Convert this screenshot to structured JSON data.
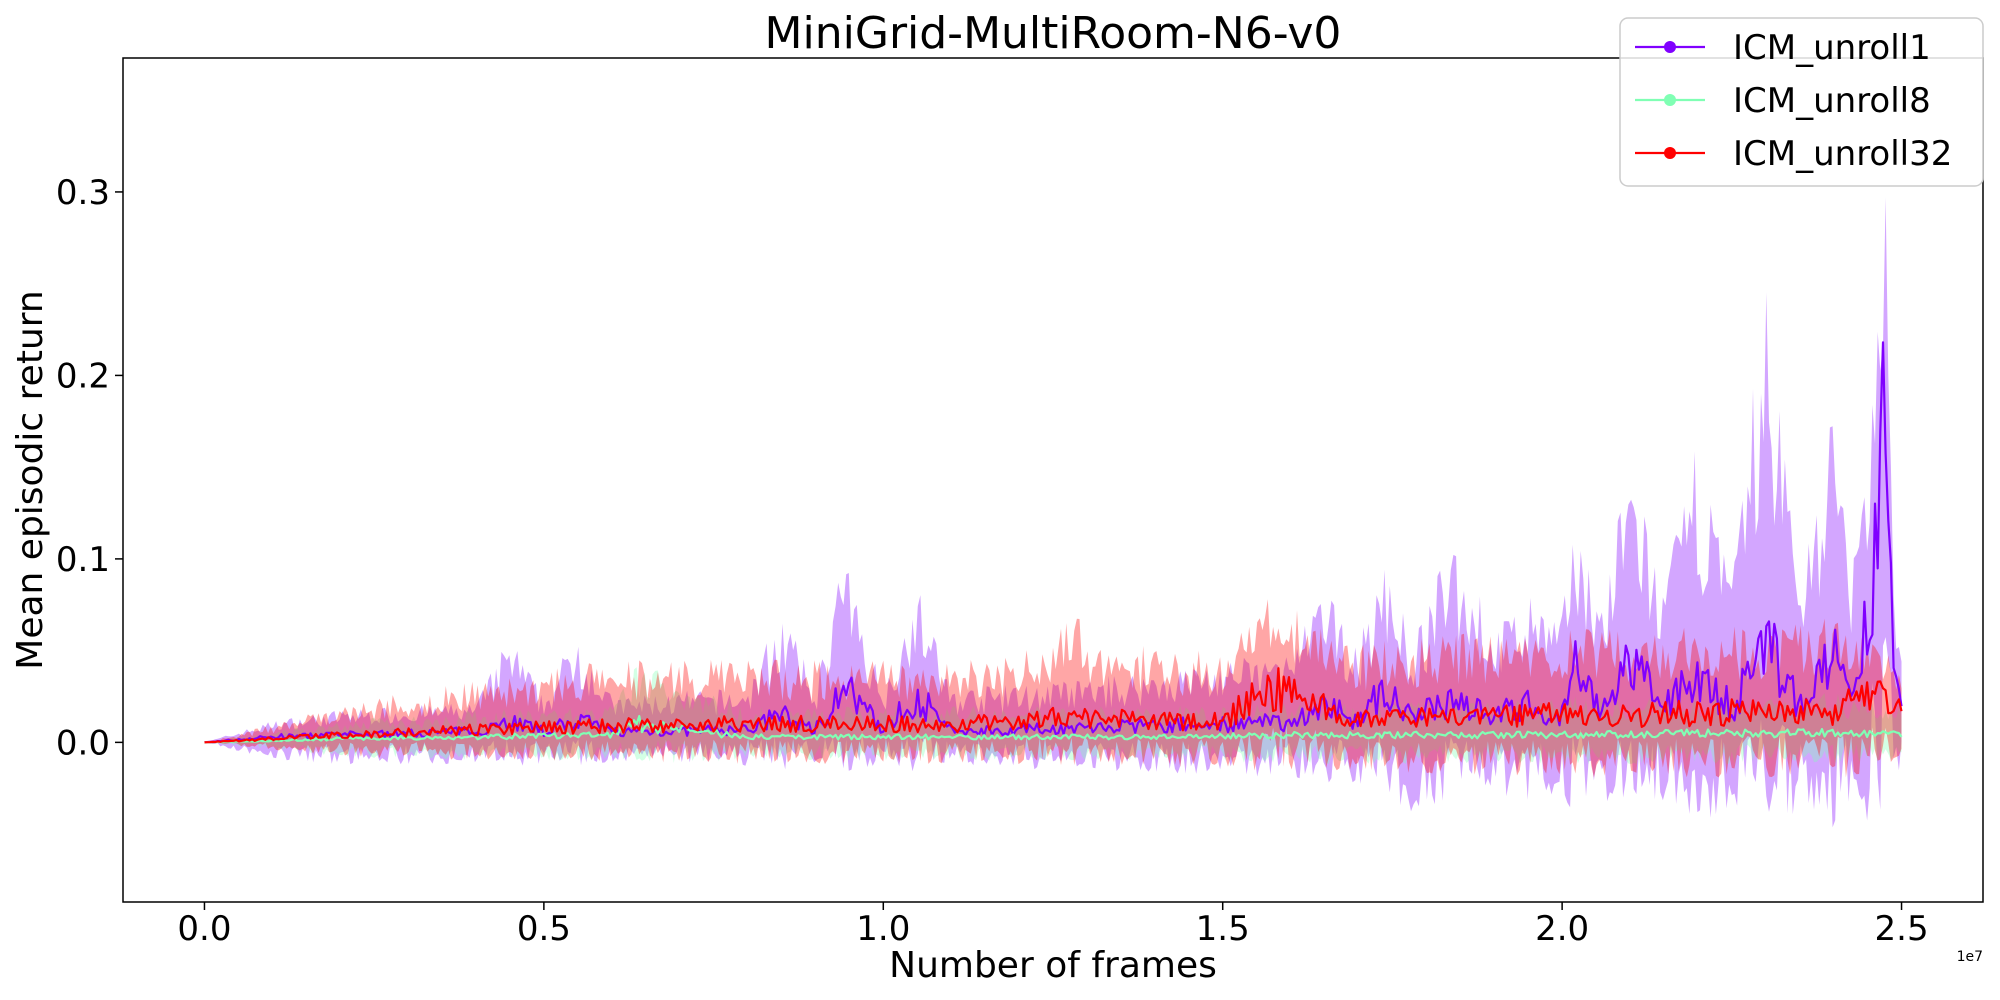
{
  "chart_data": {
    "type": "line",
    "title": "MiniGrid-MultiRoom-N6-v0",
    "xlabel": "Number of frames",
    "ylabel": "Mean episodic return",
    "x_offset_label": "1e7",
    "xlim": [
      -0.12,
      2.62
    ],
    "ylim": [
      -0.087,
      0.373
    ],
    "x_ticks": [
      0.0,
      0.5,
      1.0,
      1.5,
      2.0,
      2.5
    ],
    "x_tick_labels": [
      "0.0",
      "0.5",
      "1.0",
      "1.5",
      "2.0",
      "2.5"
    ],
    "y_ticks": [
      0.0,
      0.1,
      0.2,
      0.3
    ],
    "y_tick_labels": [
      "0.0",
      "0.1",
      "0.2",
      "0.3"
    ],
    "grid": false,
    "legend_position": "top-right",
    "series": [
      {
        "name": "ICM_unroll1",
        "color": "#8000ff",
        "x": [
          0.0,
          0.1,
          0.2,
          0.3,
          0.4,
          0.45,
          0.5,
          0.55,
          0.6,
          0.7,
          0.8,
          0.85,
          0.9,
          0.94,
          1.0,
          1.05,
          1.1,
          1.2,
          1.3,
          1.4,
          1.5,
          1.6,
          1.65,
          1.7,
          1.74,
          1.78,
          1.84,
          1.9,
          1.95,
          2.0,
          2.02,
          2.06,
          2.1,
          2.15,
          2.2,
          2.25,
          2.3,
          2.35,
          2.4,
          2.43,
          2.46,
          2.475,
          2.49,
          2.5
        ],
        "mean": [
          0.0,
          0.003,
          0.004,
          0.005,
          0.006,
          0.012,
          0.006,
          0.012,
          0.006,
          0.006,
          0.007,
          0.015,
          0.007,
          0.03,
          0.007,
          0.025,
          0.006,
          0.007,
          0.008,
          0.009,
          0.01,
          0.011,
          0.02,
          0.012,
          0.03,
          0.012,
          0.025,
          0.015,
          0.02,
          0.015,
          0.04,
          0.015,
          0.045,
          0.018,
          0.04,
          0.018,
          0.055,
          0.02,
          0.045,
          0.02,
          0.09,
          0.17,
          0.03,
          0.015
        ],
        "upper": [
          0.0,
          0.012,
          0.018,
          0.02,
          0.022,
          0.06,
          0.025,
          0.065,
          0.025,
          0.028,
          0.03,
          0.075,
          0.03,
          0.105,
          0.03,
          0.088,
          0.03,
          0.032,
          0.035,
          0.04,
          0.045,
          0.05,
          0.085,
          0.055,
          0.1,
          0.055,
          0.115,
          0.065,
          0.08,
          0.07,
          0.13,
          0.075,
          0.16,
          0.085,
          0.17,
          0.09,
          0.26,
          0.1,
          0.19,
          0.1,
          0.2,
          0.34,
          0.09,
          0.05
        ],
        "lower": [
          0.0,
          -0.01,
          -0.012,
          -0.012,
          -0.012,
          -0.015,
          -0.012,
          -0.015,
          -0.012,
          -0.012,
          -0.013,
          -0.015,
          -0.013,
          -0.018,
          -0.013,
          -0.018,
          -0.013,
          -0.015,
          -0.016,
          -0.017,
          -0.018,
          -0.02,
          -0.025,
          -0.022,
          -0.03,
          -0.04,
          -0.03,
          -0.028,
          -0.035,
          -0.03,
          -0.04,
          -0.032,
          -0.04,
          -0.035,
          -0.045,
          -0.035,
          -0.045,
          -0.04,
          -0.05,
          -0.04,
          -0.055,
          -0.065,
          -0.03,
          -0.01
        ]
      },
      {
        "name": "ICM_unroll8",
        "color": "#80ffb4",
        "x": [
          0.0,
          0.2,
          0.4,
          0.6,
          0.64,
          0.8,
          1.0,
          1.2,
          1.4,
          1.6,
          1.8,
          2.0,
          2.2,
          2.4,
          2.5
        ],
        "mean": [
          0.0,
          0.002,
          0.003,
          0.004,
          0.01,
          0.003,
          0.003,
          0.003,
          0.003,
          0.004,
          0.004,
          0.004,
          0.005,
          0.005,
          0.004
        ],
        "upper": [
          0.0,
          0.012,
          0.018,
          0.02,
          0.045,
          0.02,
          0.02,
          0.02,
          0.02,
          0.022,
          0.022,
          0.025,
          0.025,
          0.028,
          0.02
        ],
        "lower": [
          0.0,
          -0.008,
          -0.01,
          -0.01,
          -0.012,
          -0.01,
          -0.01,
          -0.01,
          -0.01,
          -0.012,
          -0.012,
          -0.012,
          -0.012,
          -0.012,
          -0.01
        ]
      },
      {
        "name": "ICM_unroll32",
        "color": "#ff0000",
        "x": [
          0.0,
          0.2,
          0.4,
          0.5,
          0.6,
          0.8,
          1.0,
          1.1,
          1.2,
          1.26,
          1.4,
          1.5,
          1.57,
          1.7,
          1.8,
          1.9,
          2.0,
          2.1,
          2.2,
          2.3,
          2.4,
          2.46,
          2.5
        ],
        "mean": [
          0.0,
          0.004,
          0.007,
          0.008,
          0.009,
          0.01,
          0.01,
          0.01,
          0.011,
          0.015,
          0.011,
          0.012,
          0.03,
          0.012,
          0.013,
          0.014,
          0.015,
          0.015,
          0.016,
          0.017,
          0.017,
          0.025,
          0.018
        ],
        "upper": [
          0.0,
          0.02,
          0.035,
          0.04,
          0.045,
          0.045,
          0.045,
          0.045,
          0.048,
          0.072,
          0.05,
          0.052,
          0.08,
          0.055,
          0.06,
          0.06,
          0.062,
          0.062,
          0.065,
          0.065,
          0.068,
          0.06,
          0.04
        ],
        "lower": [
          0.0,
          -0.008,
          -0.01,
          -0.01,
          -0.012,
          -0.012,
          -0.012,
          -0.012,
          -0.013,
          -0.014,
          -0.014,
          -0.015,
          -0.016,
          -0.016,
          -0.018,
          -0.018,
          -0.02,
          -0.02,
          -0.02,
          -0.02,
          -0.02,
          -0.02,
          -0.01
        ]
      }
    ]
  }
}
